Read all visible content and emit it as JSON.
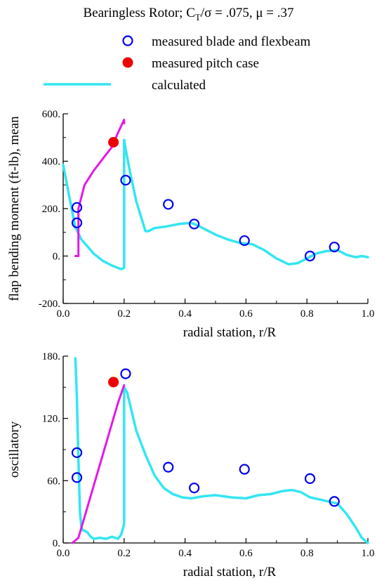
{
  "figure": {
    "title": "Bearingless Rotor; C",
    "title_sub": "T",
    "title_rest": "/σ = .075, μ = .37",
    "legend": [
      {
        "label": "measured blade and flexbeam",
        "marker": "open-circle",
        "color": "#0000ee"
      },
      {
        "label": "measured pitch case",
        "marker": "filled-circle",
        "color": "#ee0000"
      },
      {
        "label": "calculated",
        "marker": "line",
        "color": "#33e6f2"
      }
    ],
    "colors": {
      "calculated": "#33e6f2",
      "pitch_case_line": "#e619e6",
      "blade_markers": "#0000ee",
      "pitch_markers": "#ee0000"
    }
  },
  "chart_data": [
    {
      "type": "line",
      "xlabel": "radial station, r/R",
      "ylabel": "flap bending moment (ft-lb), mean",
      "xlim": [
        0,
        1
      ],
      "ylim": [
        -200,
        600
      ],
      "xticks": [
        "0.0",
        "0.2",
        "0.4",
        "0.6",
        "0.8",
        "1.0"
      ],
      "yticks": [
        "-200.",
        "0.",
        "200.",
        "400.",
        "600."
      ],
      "xtick_values": [
        0,
        0.2,
        0.4,
        0.6,
        0.8,
        1.0
      ],
      "ytick_values": [
        -200,
        0,
        200,
        400,
        600
      ],
      "series": [
        {
          "name": "calculated",
          "style": "line",
          "x": [
            0.0,
            0.02,
            0.04,
            0.06,
            0.08,
            0.1,
            0.13,
            0.16,
            0.19,
            0.2,
            0.2,
            0.205,
            0.22,
            0.24,
            0.27,
            0.28,
            0.3,
            0.34,
            0.38,
            0.42,
            0.44,
            0.47,
            0.5,
            0.54,
            0.58,
            0.62,
            0.66,
            0.7,
            0.74,
            0.77,
            0.8,
            0.83,
            0.86,
            0.9,
            0.93,
            0.96,
            0.98,
            1.0
          ],
          "y": [
            385,
            250,
            120,
            70,
            40,
            10,
            -20,
            -40,
            -55,
            -50,
            490,
            450,
            350,
            230,
            105,
            105,
            118,
            125,
            135,
            140,
            130,
            110,
            90,
            70,
            55,
            50,
            25,
            -10,
            -35,
            -30,
            -10,
            10,
            20,
            25,
            5,
            -5,
            0,
            -5
          ]
        },
        {
          "name": "pitch case",
          "style": "line",
          "x": [
            0.04,
            0.05,
            0.05,
            0.07,
            0.1,
            0.13,
            0.16,
            0.18,
            0.2,
            0.2
          ],
          "y": [
            0,
            0,
            200,
            300,
            360,
            410,
            460,
            520,
            575,
            560
          ]
        },
        {
          "name": "measured blade and flexbeam",
          "style": "open-circle",
          "x": [
            0.045,
            0.045,
            0.205,
            0.345,
            0.43,
            0.595,
            0.81,
            0.89
          ],
          "y": [
            205,
            140,
            320,
            218,
            135,
            65,
            0,
            38
          ]
        },
        {
          "name": "measured pitch case",
          "style": "filled-circle",
          "x": [
            0.165
          ],
          "y": [
            480
          ]
        }
      ]
    },
    {
      "type": "line",
      "xlabel": "radial station, r/R",
      "ylabel": "oscillatory",
      "xlim": [
        0,
        1
      ],
      "ylim": [
        0,
        180
      ],
      "xticks": [
        "0.0",
        "0.2",
        "0.4",
        "0.6",
        "0.8",
        "1.0"
      ],
      "yticks": [
        "0.",
        "60.",
        "120.",
        "180."
      ],
      "xtick_values": [
        0,
        0.2,
        0.4,
        0.6,
        0.8,
        1.0
      ],
      "ytick_values": [
        0,
        60,
        120,
        180
      ],
      "series": [
        {
          "name": "calculated",
          "style": "line",
          "x": [
            0.04,
            0.045,
            0.05,
            0.055,
            0.06,
            0.065,
            0.07,
            0.08,
            0.09,
            0.1,
            0.12,
            0.14,
            0.16,
            0.18,
            0.19,
            0.2,
            0.2,
            0.21,
            0.24,
            0.27,
            0.3,
            0.33,
            0.36,
            0.39,
            0.42,
            0.46,
            0.5,
            0.55,
            0.6,
            0.64,
            0.68,
            0.72,
            0.75,
            0.78,
            0.81,
            0.84,
            0.87,
            0.9,
            0.93,
            0.96,
            0.98,
            1.0
          ],
          "y": [
            178,
            140,
            80,
            30,
            15,
            12,
            12,
            10,
            6,
            4,
            5,
            4,
            6,
            4,
            8,
            18,
            150,
            145,
            108,
            85,
            65,
            53,
            47,
            44,
            43,
            45,
            46,
            44,
            43,
            46,
            47,
            50,
            51,
            49,
            44,
            42,
            40,
            38,
            28,
            15,
            5,
            0
          ]
        },
        {
          "name": "pitch case",
          "style": "line",
          "x": [
            0.03,
            0.05,
            0.07,
            0.1,
            0.13,
            0.16,
            0.18,
            0.2
          ],
          "y": [
            0,
            5,
            25,
            55,
            85,
            115,
            135,
            152
          ]
        },
        {
          "name": "measured blade and flexbeam",
          "style": "open-circle",
          "x": [
            0.045,
            0.045,
            0.205,
            0.345,
            0.43,
            0.595,
            0.81,
            0.89
          ],
          "y": [
            87,
            63,
            163,
            73,
            53,
            71,
            62,
            40
          ]
        },
        {
          "name": "measured pitch case",
          "style": "filled-circle",
          "x": [
            0.165
          ],
          "y": [
            155
          ]
        }
      ]
    }
  ]
}
